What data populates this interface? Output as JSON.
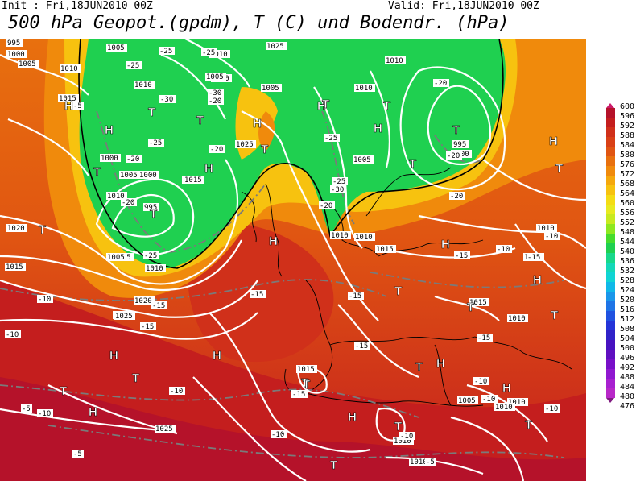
{
  "header": {
    "init": "Init : Fri,18JUN2010 00Z",
    "valid": "Valid: Fri,18JUN2010 00Z",
    "title": "500 hPa Geopot.(gpdm), T (C) und Bodendr. (hPa)"
  },
  "legend": {
    "labels": [
      "600",
      "596",
      "592",
      "588",
      "584",
      "580",
      "576",
      "572",
      "568",
      "564",
      "560",
      "556",
      "552",
      "548",
      "544",
      "540",
      "536",
      "532",
      "528",
      "524",
      "520",
      "516",
      "512",
      "508",
      "504",
      "500",
      "496",
      "492",
      "488",
      "484",
      "480",
      "476"
    ],
    "colors": [
      "#cc1a6a",
      "#b5122a",
      "#c41e1e",
      "#d0301a",
      "#d94016",
      "#e05512",
      "#e8700e",
      "#f08a0c",
      "#f5a80c",
      "#f7c20f",
      "#f4dc14",
      "#e8ea20",
      "#c8ea20",
      "#8ee820",
      "#46dc2c",
      "#1fd050",
      "#18d88a",
      "#14d8b8",
      "#10d4d4",
      "#10b8e8",
      "#1a96ea",
      "#1e74e6",
      "#2052e0",
      "#2434d8",
      "#3022c8",
      "#4812c0",
      "#6010c0",
      "#7810c8",
      "#9018d0",
      "#a820d0",
      "#b828c8",
      "#801a80"
    ]
  },
  "map": {
    "pressure_labels": [
      "995",
      "1000",
      "1005",
      "1010",
      "1015",
      "1020",
      "1025",
      "1005",
      "1010",
      "1015",
      "1010",
      "1005",
      "1000",
      "1005",
      "1010",
      "1015",
      "1020",
      "1025",
      "1015",
      "1010",
      "1005",
      "1025",
      "1010",
      "1010",
      "1005",
      "1010",
      "995",
      "1000",
      "1005",
      "1005",
      "1010",
      "1015",
      "1010",
      "1010",
      "1010",
      "1015",
      "1015",
      "1010",
      "1010",
      "1010",
      "1010",
      "1010",
      "1005",
      "1025",
      "1000",
      "995",
      "1025"
    ],
    "temperature_labels": [
      "-25",
      "-25",
      "-25",
      "-30",
      "-20",
      "-25",
      "-20",
      "-20",
      "-25",
      "-30",
      "-20",
      "-20",
      "-25",
      "-30",
      "-25",
      "-20",
      "-20",
      "-20",
      "-15",
      "-15",
      "-15",
      "-15",
      "-15",
      "-15",
      "-10",
      "-10",
      "-15",
      "-10",
      "-10",
      "-10",
      "-10",
      "-10",
      "-5",
      "-5",
      "-5",
      "-5",
      "-10",
      "-10",
      "-15",
      "-15",
      "-10",
      "-10"
    ],
    "high_marker": "H",
    "low_marker": "T"
  }
}
